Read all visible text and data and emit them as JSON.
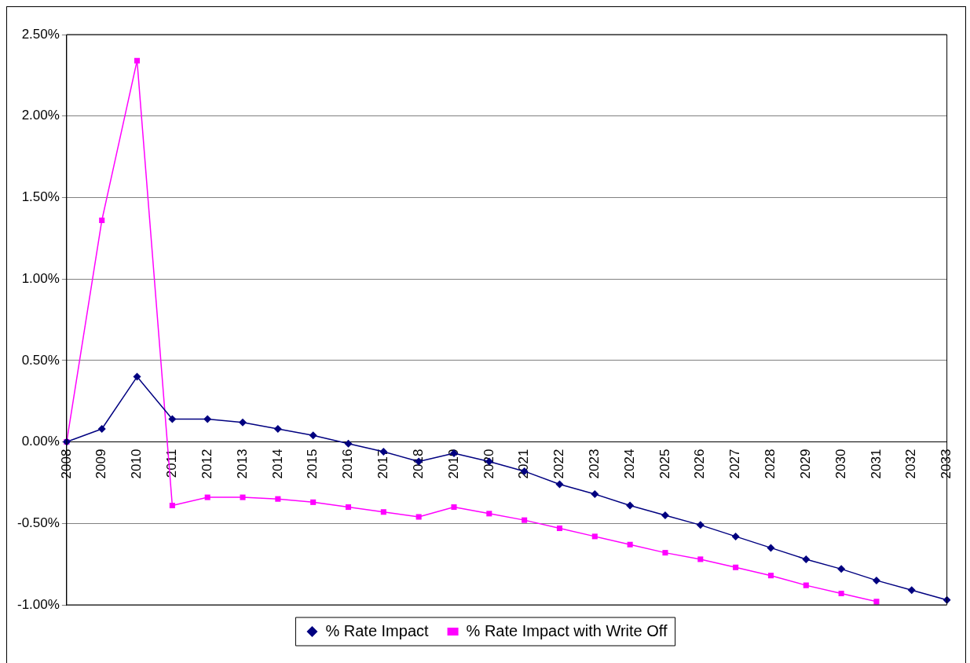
{
  "chart_data": {
    "type": "line",
    "categories": [
      "2008",
      "2009",
      "2010",
      "2011",
      "2012",
      "2013",
      "2014",
      "2015",
      "2016",
      "2017",
      "2018",
      "2019",
      "2020",
      "2021",
      "2022",
      "2023",
      "2024",
      "2025",
      "2026",
      "2027",
      "2028",
      "2029",
      "2030",
      "2031",
      "2032",
      "2033"
    ],
    "series": [
      {
        "name": "% Rate Impact",
        "color": "#000080",
        "marker": "diamond",
        "values": [
          0,
          0.08,
          0.4,
          0.14,
          0.14,
          0.12,
          0.08,
          0.04,
          -0.01,
          -0.06,
          -0.12,
          -0.07,
          -0.12,
          -0.18,
          -0.26,
          -0.32,
          -0.39,
          -0.45,
          -0.51,
          -0.58,
          -0.65,
          -0.72,
          -0.78,
          -0.85,
          -0.91,
          -0.97
        ]
      },
      {
        "name": "% Rate Impact with Write Off",
        "color": "#ff00ff",
        "marker": "square",
        "values": [
          0,
          1.36,
          2.34,
          -0.39,
          -0.34,
          -0.34,
          -0.35,
          -0.37,
          -0.4,
          -0.43,
          -0.46,
          -0.4,
          -0.44,
          -0.48,
          -0.53,
          -0.58,
          -0.63,
          -0.68,
          -0.72,
          -0.77,
          -0.82,
          -0.88,
          -0.93,
          -0.98,
          null,
          null
        ]
      }
    ],
    "ylim": [
      -1,
      2.5
    ],
    "yticks": [
      {
        "value": -1,
        "label": "-1.00%"
      },
      {
        "value": -0.5,
        "label": "-0.50%"
      },
      {
        "value": 0,
        "label": "0.00%"
      },
      {
        "value": 0.5,
        "label": "0.50%"
      },
      {
        "value": 1,
        "label": "1.00%"
      },
      {
        "value": 1.5,
        "label": "1.50%"
      },
      {
        "value": 2,
        "label": "2.00%"
      },
      {
        "value": 2.5,
        "label": "2.50%"
      }
    ],
    "grid": "y",
    "legend": "bottom",
    "line_style": "solid"
  }
}
